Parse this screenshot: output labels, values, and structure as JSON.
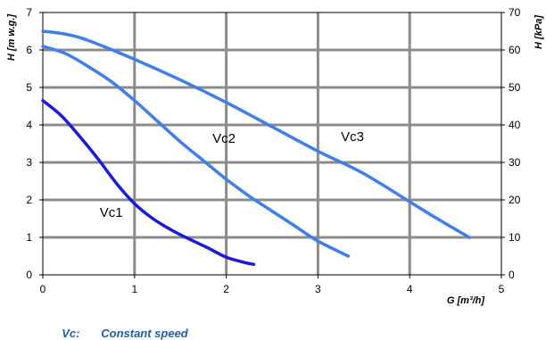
{
  "chart_data": {
    "type": "line",
    "xlabel": "G [m³/h]",
    "ylabel_left": "H [m w.g.]",
    "ylabel_right": "H [kPa]",
    "xlim": [
      0,
      5
    ],
    "ylim_left": [
      0,
      7
    ],
    "ylim_right": [
      0,
      70
    ],
    "x_ticks": [
      "0",
      "1",
      "2",
      "3",
      "4",
      "5"
    ],
    "y_left_ticks": [
      "0",
      "1",
      "2",
      "3",
      "4",
      "5",
      "6",
      "7"
    ],
    "y_right_ticks": [
      "0",
      "10",
      "20",
      "30",
      "40",
      "50",
      "60",
      "70"
    ],
    "grid": true,
    "series": [
      {
        "name": "Vc1",
        "color": "#1a1adc",
        "x": [
          0,
          0.2,
          0.4,
          0.6,
          0.8,
          1.0,
          1.2,
          1.4,
          1.6,
          1.8,
          2.0,
          2.2,
          2.3
        ],
        "y": [
          4.65,
          4.25,
          3.7,
          3.1,
          2.45,
          1.9,
          1.5,
          1.2,
          0.95,
          0.72,
          0.47,
          0.33,
          0.28
        ]
      },
      {
        "name": "Vc2",
        "color": "#3f7fec",
        "x": [
          0,
          0.25,
          0.5,
          0.75,
          1.0,
          1.25,
          1.5,
          1.75,
          2.0,
          2.25,
          2.5,
          2.75,
          3.0,
          3.33
        ],
        "y": [
          6.1,
          5.9,
          5.55,
          5.15,
          4.65,
          4.1,
          3.55,
          3.05,
          2.55,
          2.1,
          1.7,
          1.3,
          0.9,
          0.5
        ]
      },
      {
        "name": "Vc3",
        "color": "#3f7fec",
        "x": [
          0,
          0.25,
          0.5,
          1.0,
          1.5,
          2.0,
          2.5,
          3.0,
          3.5,
          4.0,
          4.3,
          4.65
        ],
        "y": [
          6.5,
          6.42,
          6.25,
          5.75,
          5.2,
          4.6,
          3.95,
          3.3,
          2.7,
          1.95,
          1.5,
          1.0
        ]
      }
    ],
    "curve_labels": [
      {
        "text": "Vc1",
        "x": 0.62,
        "y": 1.55
      },
      {
        "text": "Vc2",
        "x": 1.85,
        "y": 3.52
      },
      {
        "text": "Vc3",
        "x": 3.25,
        "y": 3.57
      }
    ]
  },
  "footnote": {
    "key": "Vc:",
    "text": "Constant speed",
    "color": "#1f5fa8"
  }
}
